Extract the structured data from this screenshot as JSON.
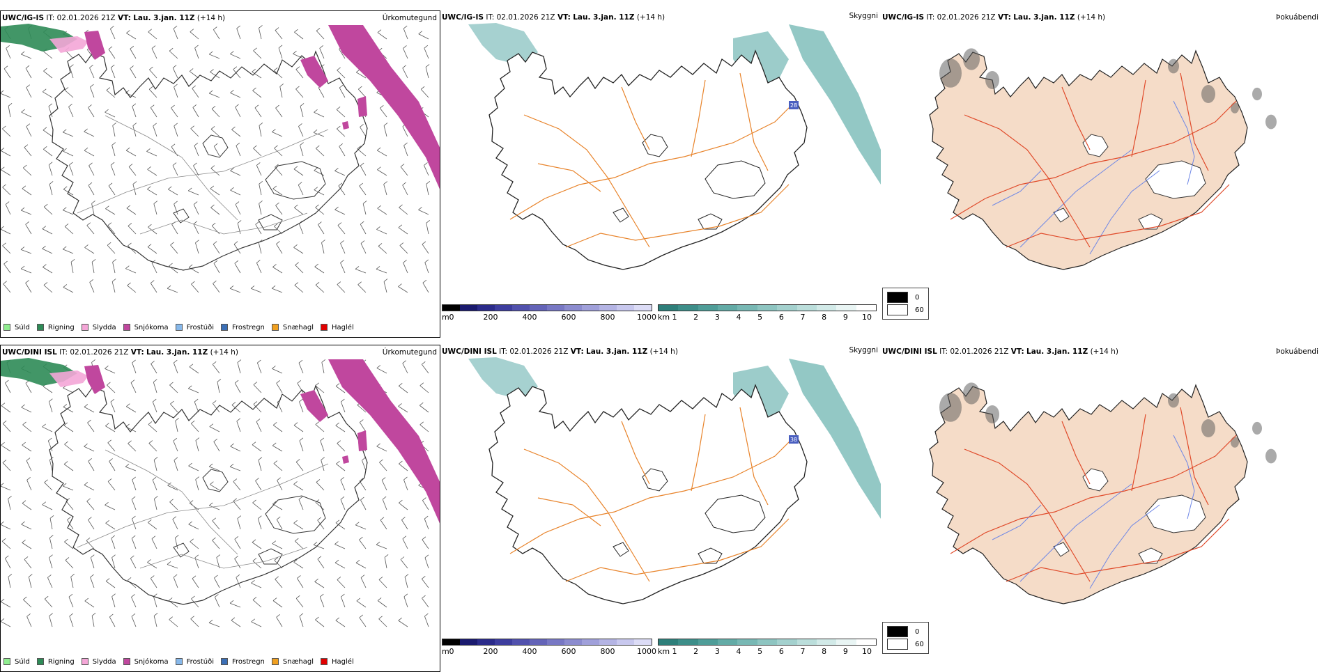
{
  "rows": [
    {
      "model": "UWC/IG-IS",
      "it_label": "IT:",
      "it_value": "02.01.2026 21Z",
      "vt_label": "VT:",
      "vt_value": "Lau. 3.jan. 11Z",
      "lead": "(+14 h)",
      "panels": [
        "Úrkomutegund",
        "Skyggni",
        "Þokuábendi"
      ]
    },
    {
      "model": "UWC/DINI ISL",
      "it_label": "IT:",
      "it_value": "02.01.2026 21Z",
      "vt_label": "VT:",
      "vt_value": "Lau. 3.jan. 11Z",
      "lead": "(+14 h)",
      "panels": [
        "Úrkomutegund",
        "Skyggni",
        "Þokuábendi"
      ]
    }
  ],
  "precip_legend": [
    {
      "label": "Súld",
      "color": "#90ee90"
    },
    {
      "label": "Rigning",
      "color": "#2e8b57"
    },
    {
      "label": "Slydda",
      "color": "#f4a6d7"
    },
    {
      "label": "Snjókoma",
      "color": "#c0479e"
    },
    {
      "label": "Frostúði",
      "color": "#87b8ea"
    },
    {
      "label": "Frostregn",
      "color": "#3b6fb6"
    },
    {
      "label": "Snæhagl",
      "color": "#f0a020"
    },
    {
      "label": "Haglél",
      "color": "#e00000"
    }
  ],
  "height_bar": {
    "unit": "m",
    "ticks": [
      "0",
      "200",
      "400",
      "600",
      "800",
      "1000"
    ]
  },
  "vis_bar": {
    "unit": "km",
    "ticks": [
      "1",
      "2",
      "3",
      "4",
      "5",
      "6",
      "7",
      "8",
      "9",
      "10"
    ]
  },
  "fog_legend": [
    "0",
    "60"
  ],
  "vis_labels": [
    "28",
    "38"
  ],
  "colors": {
    "snow": "#c0479e",
    "rain": "#2e8b57",
    "vis_teal": "#3a9a96",
    "roads_orange": "#e8832a",
    "roads_red": "#e04a2a",
    "land_fog": "#f5dcc8",
    "rivers": "#6d86e6"
  }
}
